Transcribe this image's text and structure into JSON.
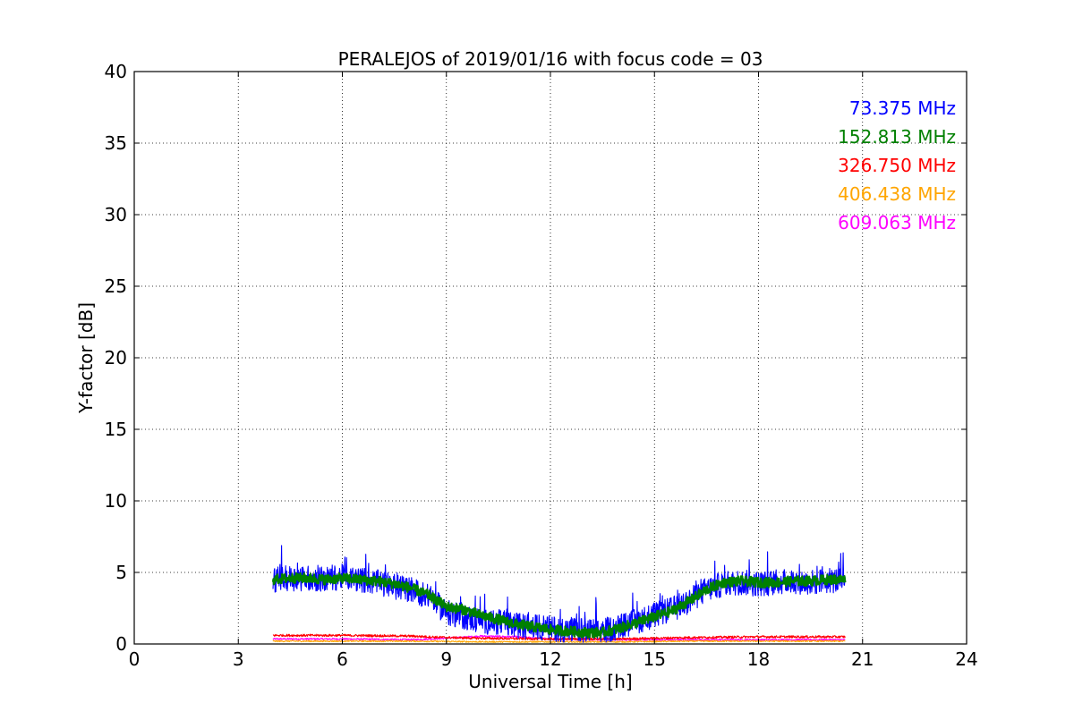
{
  "chart_data": {
    "type": "line",
    "title": "PERALEJOS of 2019/01/16 with focus code = 03",
    "xlabel": "Universal Time [h]",
    "ylabel": "Y-factor [dB]",
    "xlim": [
      0,
      24
    ],
    "ylim": [
      0,
      40
    ],
    "xticks": [
      "0",
      "3",
      "6",
      "9",
      "12",
      "15",
      "18",
      "21",
      "24"
    ],
    "yticks": [
      "0",
      "5",
      "10",
      "15",
      "20",
      "25",
      "30",
      "35",
      "40"
    ],
    "grid": true,
    "legend_position": "top-right",
    "series": [
      {
        "name": "73.375 MHz",
        "color": "#0000ff",
        "noise": 0.9,
        "x": [
          4.0,
          4.5,
          5.0,
          5.5,
          6.0,
          6.5,
          7.0,
          7.5,
          8.0,
          8.5,
          9.0,
          9.5,
          10.0,
          10.5,
          11.0,
          11.5,
          12.0,
          12.5,
          13.0,
          13.5,
          14.0,
          14.5,
          15.0,
          15.5,
          16.0,
          16.5,
          17.0,
          17.5,
          18.0,
          18.5,
          19.0,
          19.5,
          20.0,
          20.5
        ],
        "y": [
          4.5,
          4.6,
          4.6,
          4.5,
          4.7,
          4.5,
          4.3,
          4.0,
          3.8,
          3.3,
          2.2,
          1.9,
          1.6,
          1.5,
          1.3,
          1.2,
          1.1,
          1.0,
          0.9,
          0.9,
          1.2,
          1.6,
          2.0,
          2.4,
          3.0,
          3.8,
          4.2,
          4.3,
          4.2,
          4.3,
          4.4,
          4.3,
          4.4,
          4.5
        ]
      },
      {
        "name": "152.813 MHz",
        "color": "#008000",
        "noise": 0.35,
        "x": [
          4.0,
          4.5,
          5.0,
          5.5,
          6.0,
          6.5,
          7.0,
          7.5,
          8.0,
          8.5,
          9.0,
          9.5,
          10.0,
          10.5,
          11.0,
          11.5,
          12.0,
          12.5,
          13.0,
          13.5,
          14.0,
          14.5,
          15.0,
          15.5,
          16.0,
          16.5,
          17.0,
          17.5,
          18.0,
          18.5,
          19.0,
          19.5,
          20.0,
          20.5
        ],
        "y": [
          4.5,
          4.6,
          4.6,
          4.5,
          4.6,
          4.5,
          4.4,
          4.2,
          3.9,
          3.4,
          2.6,
          2.4,
          2.0,
          1.7,
          1.4,
          1.2,
          1.0,
          0.9,
          0.8,
          0.8,
          1.1,
          1.5,
          1.9,
          2.3,
          3.0,
          3.8,
          4.3,
          4.4,
          4.3,
          4.3,
          4.4,
          4.4,
          4.5,
          4.5
        ]
      },
      {
        "name": "326.750 MHz",
        "color": "#ff0000",
        "noise": 0.08,
        "x": [
          4.0,
          6.0,
          8.0,
          9.0,
          10.0,
          12.0,
          14.0,
          16.0,
          18.0,
          20.5
        ],
        "y": [
          0.6,
          0.6,
          0.55,
          0.45,
          0.4,
          0.35,
          0.35,
          0.45,
          0.5,
          0.5
        ]
      },
      {
        "name": "406.438 MHz",
        "color": "#ffa500",
        "noise": 0.05,
        "x": [
          4.0,
          6.0,
          8.0,
          10.0,
          12.0,
          14.0,
          16.0,
          18.0,
          20.5
        ],
        "y": [
          0.2,
          0.2,
          0.2,
          0.15,
          0.15,
          0.15,
          0.2,
          0.2,
          0.2
        ]
      },
      {
        "name": "609.063 MHz",
        "color": "#ff00ff",
        "noise": 0.06,
        "x": [
          4.0,
          6.0,
          8.0,
          9.0,
          10.0,
          11.0,
          12.0,
          14.0,
          16.0,
          18.0,
          20.5
        ],
        "y": [
          0.35,
          0.35,
          0.3,
          0.4,
          0.55,
          0.5,
          0.35,
          0.3,
          0.3,
          0.3,
          0.3
        ]
      }
    ]
  }
}
